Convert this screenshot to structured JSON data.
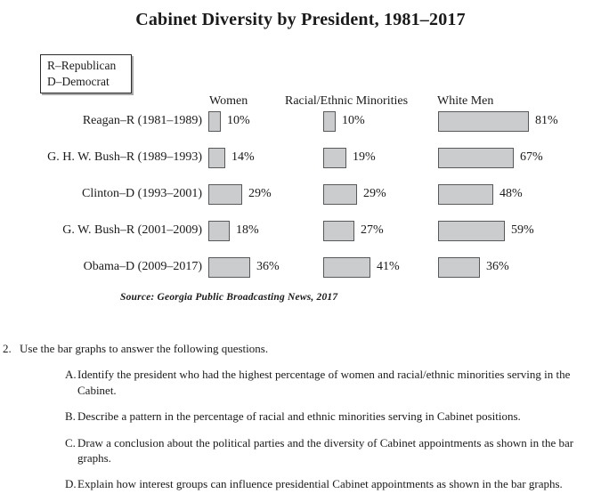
{
  "title": "Cabinet Diversity by President, 1981–2017",
  "legend": {
    "line1": "R–Republican",
    "line2": "D–Democrat"
  },
  "columns": [
    "Women",
    "Racial/Ethnic Minorities",
    "White Men"
  ],
  "source": "Source: Georgia Public Broadcasting News, 2017",
  "chart_data": {
    "type": "bar",
    "orientation": "horizontal",
    "title": "Cabinet Diversity by President, 1981–2017",
    "categories": [
      "Reagan–R (1981–1989)",
      "G. H. W. Bush–R (1989–1993)",
      "Clinton–D (1993–2001)",
      "G. W. Bush–R (2001–2009)",
      "Obama–D (2009–2017)"
    ],
    "series": [
      {
        "name": "Women",
        "values": [
          10,
          14,
          29,
          18,
          36
        ]
      },
      {
        "name": "Racial/Ethnic Minorities",
        "values": [
          10,
          19,
          29,
          27,
          41
        ]
      },
      {
        "name": "White Men",
        "values": [
          81,
          67,
          48,
          59,
          36
        ]
      }
    ],
    "unit": "%",
    "value_range": [
      0,
      100
    ],
    "grid": false,
    "bar_fill_color": "#cbcccd",
    "bar_border_color": "#58595b",
    "legend_position": "top-left"
  },
  "question": {
    "number": "2.",
    "prompt": "Use the bar graphs to answer the following questions.",
    "items": [
      {
        "letter": "A.",
        "text": "Identify the president who had the highest percentage of women and racial/ethnic minorities serving in the Cabinet."
      },
      {
        "letter": "B.",
        "text": "Describe a pattern in the percentage of racial and ethnic minorities serving in Cabinet positions."
      },
      {
        "letter": "C.",
        "text": "Draw a conclusion about the political parties and the diversity of Cabinet appointments as shown in the bar graphs."
      },
      {
        "letter": "D.",
        "text": "Explain how interest groups can influence presidential Cabinet appointments as shown in the bar graphs."
      }
    ]
  }
}
